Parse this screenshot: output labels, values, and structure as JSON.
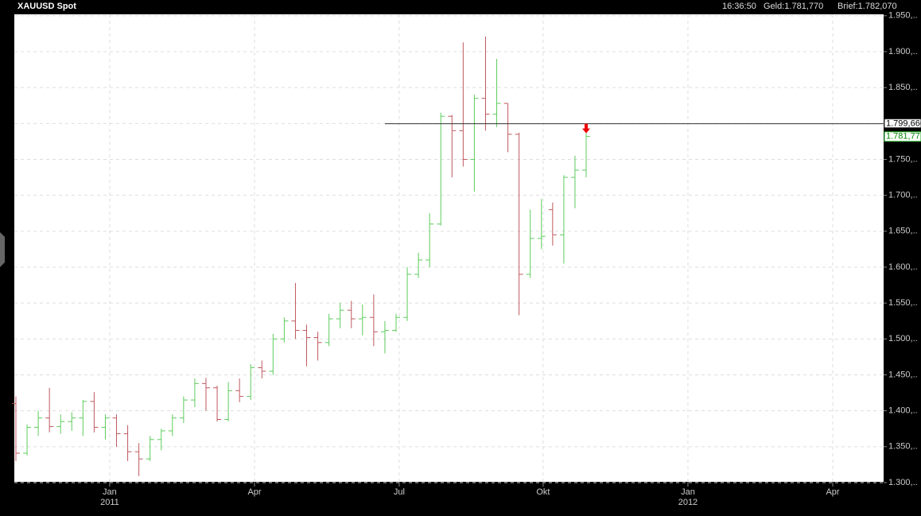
{
  "chart_data": {
    "type": "ohlc",
    "title": "XAUUSD Spot",
    "time": "16:36:50",
    "bid": "Geld:1.781,770",
    "ask": "Brief:1.782,070",
    "up_color": "#5ccc5c",
    "down_color": "#c0585e",
    "grid": true,
    "x": [
      0,
      1,
      2,
      3,
      4,
      5,
      6,
      7,
      8,
      9,
      10,
      11,
      12,
      13,
      14,
      15,
      16,
      17,
      18,
      19,
      20,
      21,
      22,
      23,
      24,
      25,
      26,
      27,
      28,
      29,
      30,
      31,
      32,
      33,
      34,
      35,
      36,
      37,
      38,
      39,
      40,
      41,
      42,
      43,
      44,
      45,
      46,
      47,
      48,
      49,
      50,
      51
    ],
    "open": [
      1410,
      1341,
      1377,
      1390,
      1378,
      1385,
      1390,
      1413,
      1377,
      1390,
      1368,
      1343,
      1333,
      1360,
      1372,
      1390,
      1415,
      1438,
      1432,
      1388,
      1428,
      1420,
      1460,
      1455,
      1500,
      1525,
      1512,
      1502,
      1495,
      1528,
      1540,
      1528,
      1530,
      1510,
      1512,
      1530,
      1590,
      1610,
      1660,
      1810,
      1790,
      1750,
      1835,
      1813,
      1828,
      1785,
      1590,
      1640,
      1680,
      1645,
      1725,
      1735
    ],
    "high": [
      1420,
      1381,
      1400,
      1432,
      1395,
      1398,
      1415,
      1426,
      1395,
      1395,
      1380,
      1355,
      1365,
      1375,
      1395,
      1420,
      1445,
      1446,
      1435,
      1440,
      1445,
      1465,
      1470,
      1507,
      1530,
      1578,
      1520,
      1510,
      1535,
      1550,
      1553,
      1548,
      1562,
      1525,
      1535,
      1600,
      1620,
      1675,
      1815,
      1812,
      1913,
      1840,
      1921,
      1890,
      1828,
      1787,
      1680,
      1695,
      1690,
      1728,
      1755,
      1790
    ],
    "low": [
      1330,
      1338,
      1365,
      1370,
      1368,
      1372,
      1365,
      1370,
      1360,
      1350,
      1330,
      1309,
      1330,
      1345,
      1365,
      1383,
      1405,
      1400,
      1385,
      1385,
      1412,
      1415,
      1445,
      1450,
      1495,
      1500,
      1462,
      1470,
      1490,
      1515,
      1515,
      1505,
      1490,
      1480,
      1510,
      1525,
      1585,
      1600,
      1658,
      1725,
      1740,
      1705,
      1790,
      1795,
      1760,
      1533,
      1585,
      1625,
      1630,
      1605,
      1682,
      1725
    ],
    "close": [
      1341,
      1377,
      1390,
      1378,
      1385,
      1390,
      1413,
      1377,
      1390,
      1368,
      1343,
      1333,
      1360,
      1372,
      1390,
      1415,
      1438,
      1432,
      1388,
      1428,
      1420,
      1460,
      1455,
      1500,
      1525,
      1512,
      1502,
      1495,
      1528,
      1540,
      1528,
      1530,
      1510,
      1512,
      1530,
      1590,
      1610,
      1660,
      1810,
      1790,
      1750,
      1835,
      1813,
      1828,
      1785,
      1590,
      1640,
      1643,
      1645,
      1725,
      1735,
      1782
    ],
    "xlim": [
      -0.14,
      77.6
    ],
    "xticks": [
      {
        "value": 8.39,
        "label": "Jan"
      },
      {
        "value": 21.34,
        "label": "Apr"
      },
      {
        "value": 34.28,
        "label": "Jul"
      },
      {
        "value": 47.15,
        "label": "Okt"
      },
      {
        "value": 60.1,
        "label": "Jan"
      },
      {
        "value": 73.05,
        "label": "Apr"
      }
    ],
    "year_labels": [
      {
        "value": 8.39,
        "label": "2011"
      },
      {
        "value": 60.1,
        "label": "2012"
      }
    ],
    "ylim": [
      1300,
      1952
    ],
    "yticks": [
      {
        "value": 1300,
        "label": "1.300,.."
      },
      {
        "value": 1350,
        "label": "1.350,.."
      },
      {
        "value": 1400,
        "label": "1.400,.."
      },
      {
        "value": 1450,
        "label": "1.450,.."
      },
      {
        "value": 1500,
        "label": "1.500,.."
      },
      {
        "value": 1550,
        "label": "1.550,.."
      },
      {
        "value": 1600,
        "label": "1.600,.."
      },
      {
        "value": 1650,
        "label": "1.650,.."
      },
      {
        "value": 1700,
        "label": "1.700,.."
      },
      {
        "value": 1750,
        "label": "1.750,.."
      },
      {
        "value": 1800,
        "label": "1.800,.."
      },
      {
        "value": 1850,
        "label": "1.850,.."
      },
      {
        "value": 1900,
        "label": "1.900,.."
      },
      {
        "value": 1950,
        "label": "1.950,.."
      }
    ],
    "hline": {
      "value": 1799.66,
      "label": "1.799,660"
    },
    "last_price": {
      "value": 1781.77,
      "label": "1.781,77"
    }
  }
}
